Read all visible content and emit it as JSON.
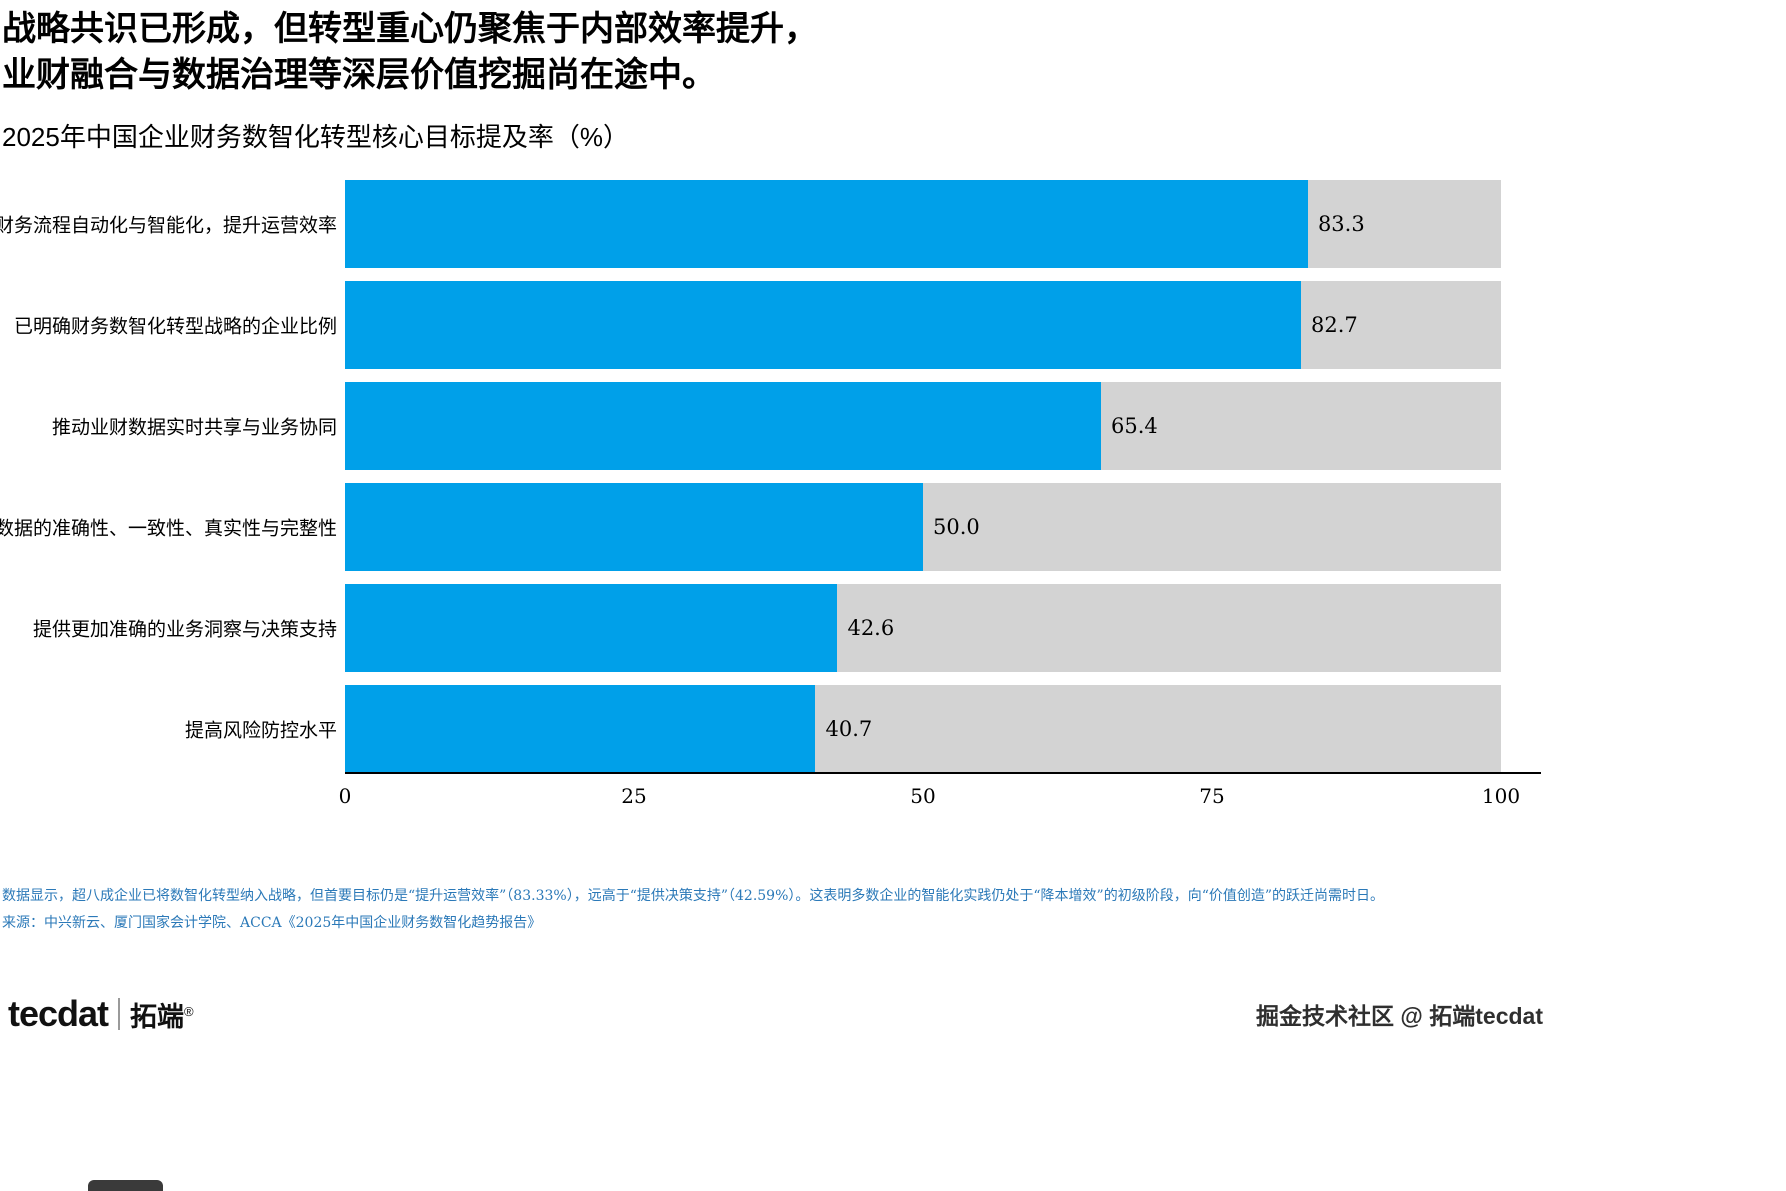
{
  "title": {
    "line1": "战略共识已形成，但转型重心仍聚焦于内部效率提升，",
    "line2": "业财融合与数据治理等深层价值挖掘尚在途中。"
  },
  "subtitle": "2025年中国企业财务数智化转型核心目标提及率（%）",
  "chart_data": {
    "type": "bar",
    "orientation": "horizontal",
    "title": "2025年中国企业财务数智化转型核心目标提及率（%）",
    "categories": [
      "推进财务流程自动化与智能化，提升运营效率",
      "已明确财务数智化转型战略的企业比例",
      "推动业财数据实时共享与业务协同",
      "增强数据的准确性、一致性、真实性与完整性",
      "提供更加准确的业务洞察与决策支持",
      "提高风险防控水平"
    ],
    "values": [
      83.3,
      82.7,
      65.4,
      50.0,
      42.6,
      40.7
    ],
    "value_labels": [
      "83.3",
      "82.7",
      "65.4",
      "50.0",
      "42.6",
      "40.7"
    ],
    "xlim": [
      0,
      100
    ],
    "x_ticks": [
      0,
      25,
      50,
      75,
      100
    ],
    "xlabel": "",
    "ylabel": "",
    "grid": false,
    "legend": false,
    "bar_color": "#00a0e9",
    "track_color": "#d3d3d3"
  },
  "footnote": "数据显示，超八成企业已将数智化转型纳入战略，但首要目标仍是“提升运营效率”（83.33%），远高于“提供决策支持”（42.59%）。这表明多数企业的智能化实践仍处于“降本增效”的初级阶段，向“价值创造”的跃迁尚需时日。",
  "source": "来源：中兴新云、厦门国家会计学院、ACCA《2025年中国企业财务数智化趋势报告》",
  "colors": {
    "note_text": "#2b79b8",
    "bar": "#00a0e9",
    "track": "#d3d3d3"
  },
  "branding": {
    "logo_en": "tecdat",
    "logo_cn": "拓端",
    "registered": "®",
    "watermark": "掘金技术社区 @ 拓端tecdat"
  }
}
